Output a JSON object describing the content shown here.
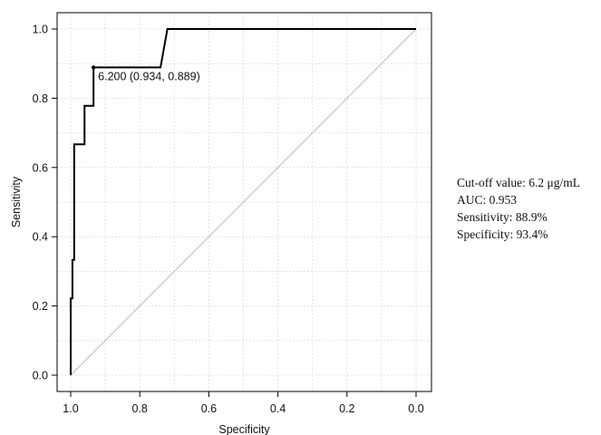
{
  "chart_data": {
    "type": "line",
    "title": "",
    "xlabel": "Specificity",
    "ylabel": "Sensitivity",
    "xlim": [
      1.0,
      0.0
    ],
    "ylim": [
      0.0,
      1.0
    ],
    "x_ticks": [
      "1.0",
      "0.8",
      "0.6",
      "0.4",
      "0.2",
      "0.0"
    ],
    "y_ticks": [
      "0.0",
      "0.2",
      "0.4",
      "0.6",
      "0.8",
      "1.0"
    ],
    "grid": true,
    "series": [
      {
        "type": "step-line",
        "color": "#000000",
        "points": [
          {
            "specificity": 1.0,
            "sensitivity": 0.0
          },
          {
            "specificity": 1.0,
            "sensitivity": 0.222
          },
          {
            "specificity": 0.995,
            "sensitivity": 0.222
          },
          {
            "specificity": 0.995,
            "sensitivity": 0.333
          },
          {
            "specificity": 0.99,
            "sensitivity": 0.333
          },
          {
            "specificity": 0.99,
            "sensitivity": 0.667
          },
          {
            "specificity": 0.96,
            "sensitivity": 0.667
          },
          {
            "specificity": 0.96,
            "sensitivity": 0.778
          },
          {
            "specificity": 0.934,
            "sensitivity": 0.778
          },
          {
            "specificity": 0.934,
            "sensitivity": 0.889
          },
          {
            "specificity": 0.74,
            "sensitivity": 0.889
          },
          {
            "specificity": 0.72,
            "sensitivity": 1.0
          },
          {
            "specificity": 0.0,
            "sensitivity": 1.0
          }
        ]
      }
    ],
    "reference_line": {
      "from": [
        1.0,
        0.0
      ],
      "to": [
        0.0,
        1.0
      ],
      "color": "#bbbbbb"
    },
    "annotations": [
      {
        "text": "6.200 (0.934, 0.889)",
        "specificity": 0.934,
        "sensitivity": 0.889
      }
    ]
  },
  "summary": {
    "cutoff": "Cut-off value:  6.2 μg/mL",
    "auc": "AUC: 0.953",
    "sensitivity": "Sensitivity:  88.9%",
    "specificity": "Specificity:  93.4%"
  }
}
